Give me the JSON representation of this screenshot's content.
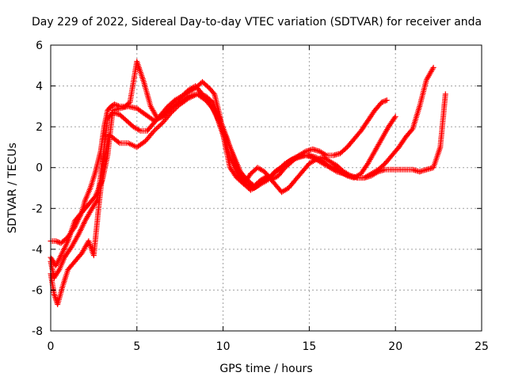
{
  "chart_data": {
    "type": "scatter",
    "title": "Day 229 of 2022, Sidereal Day-to-day VTEC variation (SDTVAR) for receiver anda",
    "xlabel": "GPS time / hours",
    "ylabel": "SDTVAR / TECUs",
    "xlim": [
      0,
      25
    ],
    "ylim": [
      -8,
      6
    ],
    "x_ticks": [
      0,
      5,
      10,
      15,
      20,
      25
    ],
    "y_ticks": [
      -8,
      -6,
      -4,
      -2,
      0,
      2,
      4,
      6
    ],
    "grid": true,
    "marker": "+",
    "color": "#ff0000",
    "series": [
      {
        "x": [
          0.0,
          0.3,
          0.6,
          1.0,
          1.4,
          1.8,
          2.0,
          2.3,
          2.6,
          2.9,
          3.1,
          3.3,
          3.5,
          3.7,
          4.0,
          4.3,
          4.6,
          5.0,
          5.4,
          5.8,
          6.2,
          6.6,
          7.0,
          7.5,
          8.0,
          8.4,
          8.8,
          9.2,
          9.5,
          9.8,
          10.1,
          10.4,
          10.8,
          11.2,
          11.6,
          12.0,
          12.4,
          12.8,
          13.2,
          13.6,
          14.0,
          14.4,
          14.8,
          15.2,
          15.6,
          16.0,
          16.4,
          16.8,
          17.2,
          17.6,
          18.0,
          18.4,
          18.8,
          19.2,
          19.5
        ],
        "y": [
          -3.6,
          -3.6,
          -3.7,
          -3.4,
          -2.9,
          -2.2,
          -1.6,
          -1.0,
          -0.2,
          0.8,
          2.0,
          2.8,
          3.0,
          3.1,
          3.0,
          3.0,
          3.2,
          5.2,
          4.2,
          3.0,
          2.4,
          2.6,
          3.0,
          3.4,
          3.7,
          3.9,
          4.2,
          3.9,
          3.6,
          2.6,
          1.2,
          0.0,
          -0.5,
          -0.8,
          -0.3,
          0.0,
          -0.2,
          -0.6,
          -0.4,
          0.0,
          0.3,
          0.6,
          0.8,
          0.9,
          0.8,
          0.6,
          0.6,
          0.7,
          1.0,
          1.4,
          1.8,
          2.3,
          2.8,
          3.2,
          3.3
        ]
      },
      {
        "x": [
          0.0,
          0.2,
          0.5,
          0.8,
          1.2,
          1.6,
          2.0,
          2.4,
          2.7,
          3.0,
          3.3,
          3.6,
          4.0,
          4.4,
          4.8,
          5.2,
          5.6,
          6.0,
          6.4,
          6.8,
          7.2,
          7.6,
          8.0,
          8.4,
          8.8,
          9.2,
          9.6,
          10.0,
          10.4,
          10.8,
          11.2,
          11.6,
          12.0,
          12.4,
          12.8,
          13.2,
          13.6,
          14.0,
          14.4,
          14.8,
          15.2,
          15.6,
          16.0,
          16.4,
          16.8,
          17.2,
          17.6,
          18.0,
          18.4,
          18.8,
          19.2,
          19.6,
          20.0
        ],
        "y": [
          -4.6,
          -5.4,
          -5.0,
          -4.4,
          -3.9,
          -3.3,
          -2.6,
          -2.0,
          -1.6,
          0.2,
          2.4,
          2.7,
          2.6,
          2.3,
          2.0,
          1.8,
          1.8,
          2.2,
          2.6,
          3.0,
          3.3,
          3.5,
          3.8,
          4.0,
          3.6,
          3.2,
          2.6,
          1.6,
          0.5,
          -0.2,
          -0.8,
          -1.1,
          -0.9,
          -0.6,
          -0.4,
          -0.1,
          0.2,
          0.4,
          0.5,
          0.6,
          0.5,
          0.3,
          0.1,
          0.0,
          -0.2,
          -0.4,
          -0.5,
          -0.3,
          0.2,
          0.8,
          1.4,
          2.0,
          2.5
        ]
      },
      {
        "x": [
          0.0,
          0.2,
          0.4,
          0.7,
          1.0,
          1.4,
          1.8,
          2.2,
          2.5,
          2.8,
          3.1,
          3.4,
          3.7,
          4.0,
          4.5,
          5.0,
          5.5,
          6.0,
          6.5,
          7.0,
          7.5,
          8.0,
          8.5,
          9.0,
          9.4,
          9.8,
          10.2,
          10.6,
          11.0,
          11.4,
          11.8,
          12.2,
          12.6,
          13.0,
          13.4,
          13.8,
          14.2,
          14.6,
          15.0,
          15.4,
          15.8,
          16.2,
          16.6,
          17.0,
          17.4,
          17.8,
          18.2,
          18.6,
          19.0,
          19.4,
          19.8,
          20.2,
          20.6,
          21.0,
          21.4,
          21.8,
          22.2
        ],
        "y": [
          -5.2,
          -6.2,
          -6.7,
          -5.8,
          -5.0,
          -4.6,
          -4.2,
          -3.6,
          -4.3,
          -1.8,
          0.4,
          1.6,
          1.4,
          1.2,
          1.2,
          1.0,
          1.3,
          1.8,
          2.2,
          2.7,
          3.1,
          3.4,
          3.6,
          3.5,
          3.2,
          2.4,
          1.5,
          0.5,
          -0.4,
          -0.8,
          -1.0,
          -0.8,
          -0.6,
          -0.2,
          0.0,
          0.3,
          0.5,
          0.6,
          0.6,
          0.5,
          0.3,
          0.0,
          -0.2,
          -0.3,
          -0.4,
          -0.5,
          -0.5,
          -0.3,
          -0.1,
          0.2,
          0.6,
          1.0,
          1.5,
          1.9,
          3.0,
          4.3,
          4.9
        ]
      },
      {
        "x": [
          0.0,
          0.3,
          0.6,
          1.0,
          1.4,
          1.8,
          2.2,
          2.6,
          3.0,
          3.3,
          3.6,
          4.0,
          4.5,
          5.0,
          5.5,
          6.0,
          6.5,
          7.0,
          7.5,
          8.0,
          8.5,
          9.0,
          9.4,
          9.8,
          10.2,
          10.6,
          11.0,
          11.4,
          11.8,
          12.2,
          12.6,
          13.0,
          13.4,
          13.8,
          14.2,
          14.6,
          15.0,
          15.4,
          15.8,
          16.2,
          16.6,
          17.0,
          17.4,
          17.8,
          18.2,
          18.6,
          19.0,
          19.4,
          19.8,
          20.2,
          20.6,
          21.0,
          21.4,
          21.8,
          22.2,
          22.6,
          22.9
        ],
        "y": [
          -4.4,
          -4.8,
          -4.3,
          -3.6,
          -2.6,
          -2.2,
          -1.8,
          -1.4,
          -0.6,
          0.6,
          2.8,
          2.9,
          3.0,
          2.9,
          2.6,
          2.3,
          2.5,
          2.9,
          3.2,
          3.5,
          3.6,
          3.3,
          2.9,
          2.2,
          1.4,
          0.6,
          -0.2,
          -0.6,
          -0.9,
          -0.6,
          -0.4,
          -0.8,
          -1.2,
          -1.0,
          -0.6,
          -0.2,
          0.2,
          0.4,
          0.5,
          0.3,
          0.1,
          -0.2,
          -0.4,
          -0.5,
          -0.5,
          -0.4,
          -0.2,
          -0.1,
          -0.1,
          -0.1,
          -0.1,
          -0.1,
          -0.2,
          -0.1,
          0.0,
          1.0,
          3.6
        ]
      }
    ]
  }
}
